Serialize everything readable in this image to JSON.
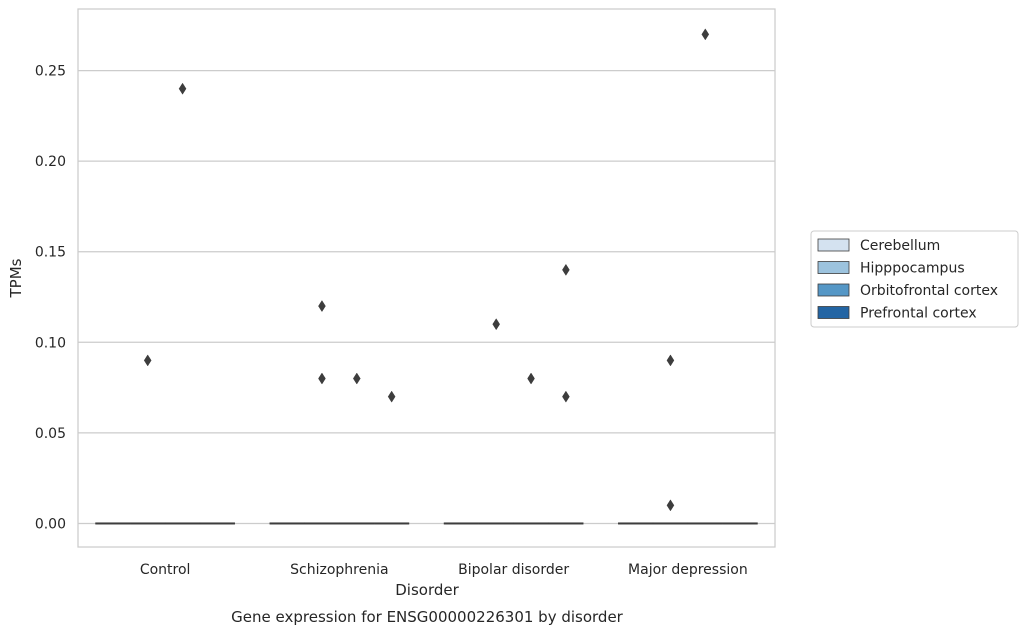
{
  "chart_data": {
    "type": "box",
    "caption": "Gene expression for ENSG00000226301 by disorder",
    "xlabel": "Disorder",
    "ylabel": "TPMs",
    "categories": [
      "Control",
      "Schizophrenia",
      "Bipolar disorder",
      "Major depression"
    ],
    "ylim": [
      -0.013,
      0.284
    ],
    "yticks": [
      0.0,
      0.05,
      0.1,
      0.15,
      0.2,
      0.25
    ],
    "ytick_labels": [
      "0.00",
      "0.05",
      "0.10",
      "0.15",
      "0.20",
      "0.25"
    ],
    "grid": "y",
    "legend_position": "right",
    "series": [
      {
        "name": "Cerebellum",
        "color": "#d4e2f0",
        "boxes": [
          {
            "median": 0,
            "q1": 0,
            "q3": 0
          },
          {
            "median": 0,
            "q1": 0,
            "q3": 0
          },
          {
            "median": 0,
            "q1": 0,
            "q3": 0
          },
          {
            "median": 0,
            "q1": 0,
            "q3": 0
          }
        ],
        "outliers": [
          [],
          [],
          [],
          []
        ]
      },
      {
        "name": "Hipppocampus",
        "color": "#9cc3de",
        "boxes": [
          {
            "median": 0,
            "q1": 0,
            "q3": 0
          },
          {
            "median": 0,
            "q1": 0,
            "q3": 0
          },
          {
            "median": 0,
            "q1": 0,
            "q3": 0
          },
          {
            "median": 0,
            "q1": 0,
            "q3": 0
          }
        ],
        "outliers": [
          [
            0.09
          ],
          [
            0.12,
            0.08
          ],
          [
            0.11
          ],
          [
            0.09,
            0.01
          ]
        ]
      },
      {
        "name": "Orbitofrontal cortex",
        "color": "#5597c6",
        "boxes": [
          {
            "median": 0,
            "q1": 0,
            "q3": 0
          },
          {
            "median": 0,
            "q1": 0,
            "q3": 0
          },
          {
            "median": 0,
            "q1": 0,
            "q3": 0
          },
          {
            "median": 0,
            "q1": 0,
            "q3": 0
          }
        ],
        "outliers": [
          [
            0.24
          ],
          [
            0.08
          ],
          [
            0.08
          ],
          [
            0.27
          ]
        ]
      },
      {
        "name": "Prefrontal cortex",
        "color": "#2365a4",
        "boxes": [
          {
            "median": 0,
            "q1": 0,
            "q3": 0
          },
          {
            "median": 0,
            "q1": 0,
            "q3": 0
          },
          {
            "median": 0,
            "q1": 0,
            "q3": 0
          },
          {
            "median": 0,
            "q1": 0,
            "q3": 0
          }
        ],
        "outliers": [
          [],
          [
            0.07
          ],
          [
            0.14,
            0.07
          ],
          []
        ]
      }
    ]
  }
}
